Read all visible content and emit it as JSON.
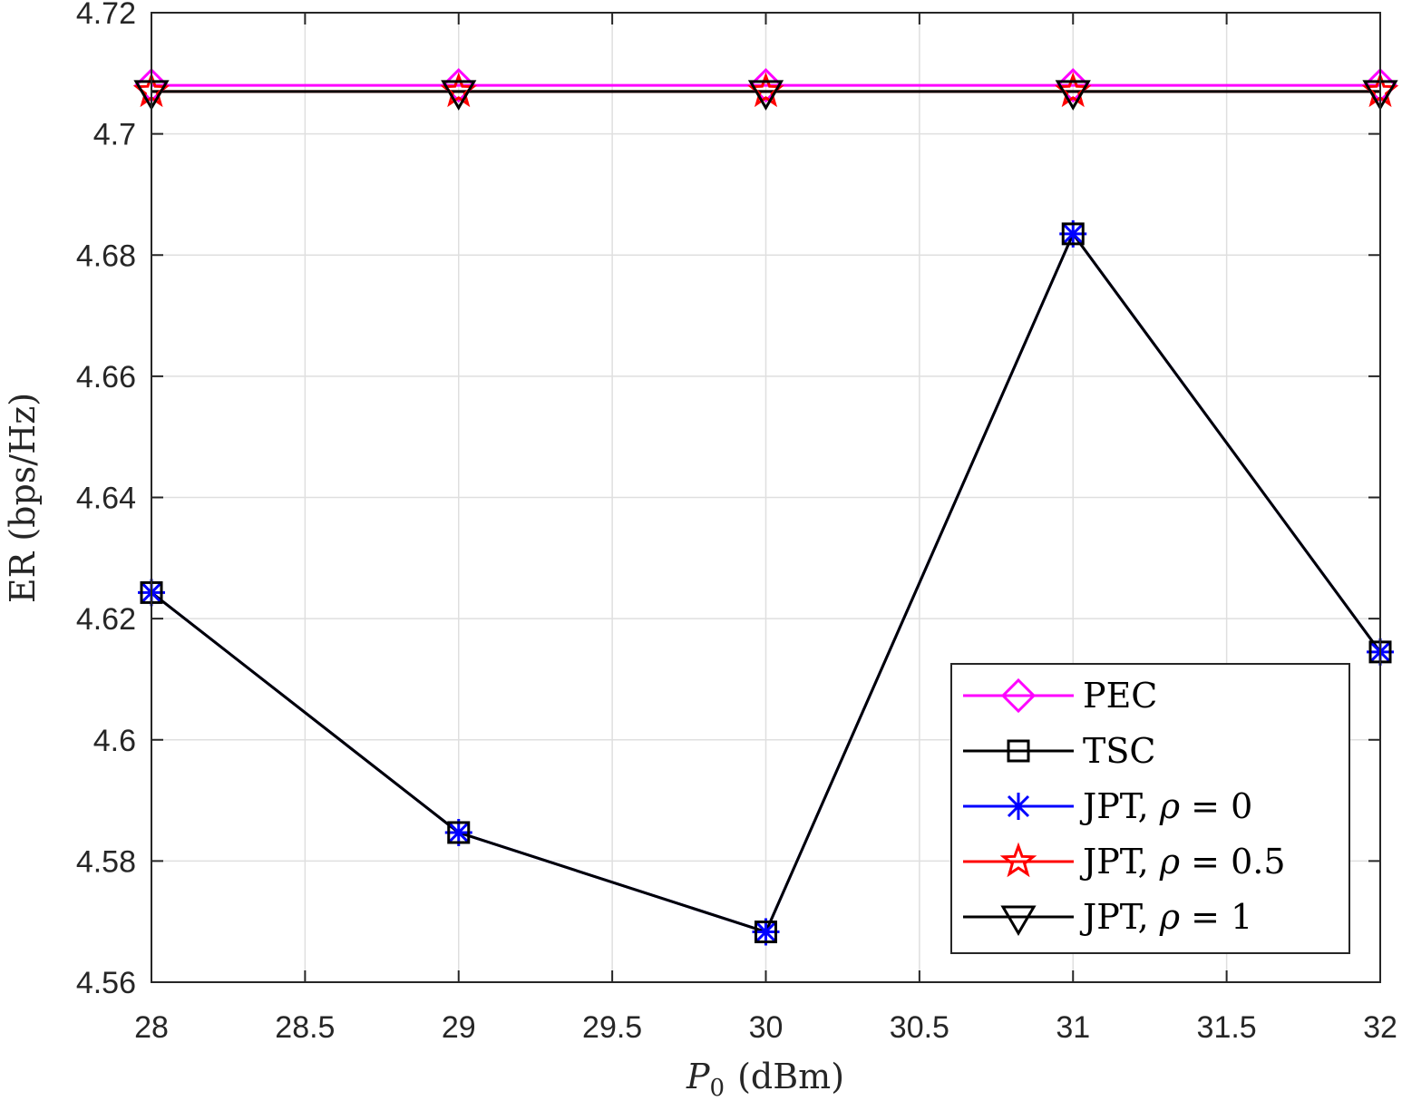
{
  "chart_data": {
    "type": "line",
    "title": "",
    "xlabel_var": "P",
    "xlabel_sub": "0",
    "xlabel_unit": "(dBm)",
    "ylabel": "ER (bps/Hz)",
    "xlim": [
      28,
      32
    ],
    "ylim": [
      4.56,
      4.72
    ],
    "xticks": [
      28,
      28.5,
      29,
      29.5,
      30,
      30.5,
      31,
      31.5,
      32
    ],
    "xtick_labels": [
      "28",
      "28.5",
      "29",
      "29.5",
      "30",
      "30.5",
      "31",
      "31.5",
      "32"
    ],
    "yticks": [
      4.56,
      4.58,
      4.6,
      4.62,
      4.64,
      4.66,
      4.68,
      4.7,
      4.72
    ],
    "ytick_labels": [
      "4.56",
      "4.58",
      "4.6",
      "4.62",
      "4.64",
      "4.66",
      "4.68",
      "4.7",
      "4.72"
    ],
    "grid": true,
    "legend_position": "bottom-right",
    "x": [
      28,
      29,
      30,
      31,
      32
    ],
    "series": [
      {
        "name": "PEC",
        "label_text": "PEC",
        "label_var": "",
        "label_eq": "",
        "color": "#ff00ff",
        "marker": "diamond",
        "values": [
          4.708,
          4.708,
          4.708,
          4.708,
          4.708
        ]
      },
      {
        "name": "TSC",
        "label_text": "TSC",
        "label_var": "",
        "label_eq": "",
        "color": "#000000",
        "marker": "square",
        "values": [
          4.6243,
          4.5847,
          4.5683,
          4.6835,
          4.6145
        ]
      },
      {
        "name": "JPT, ρ = 0",
        "label_text": "JPT, ",
        "label_var": "ρ",
        "label_eq": " = 0",
        "color": "#0000ff",
        "marker": "asterisk",
        "values": [
          4.6243,
          4.5847,
          4.5683,
          4.6835,
          4.6145
        ]
      },
      {
        "name": "JPT, ρ = 0.5",
        "label_text": "JPT, ",
        "label_var": "ρ",
        "label_eq": " = 0.5",
        "color": "#ff0000",
        "marker": "star",
        "values": [
          4.707,
          4.707,
          4.707,
          4.707,
          4.707
        ]
      },
      {
        "name": "JPT, ρ = 1",
        "label_text": "JPT, ",
        "label_var": "ρ",
        "label_eq": " = 1",
        "color": "#000000",
        "marker": "triangle-down",
        "values": [
          4.707,
          4.707,
          4.707,
          4.707,
          4.707
        ]
      }
    ]
  }
}
